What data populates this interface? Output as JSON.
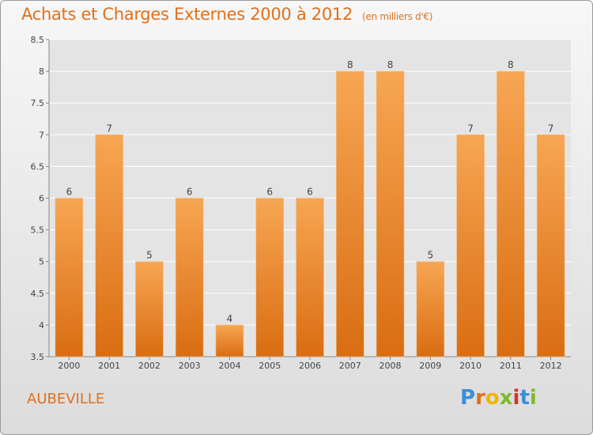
{
  "header": {
    "title": "Achats et Charges Externes 2000 à 2012",
    "unit": "(en milliers d'€)"
  },
  "footer": {
    "city": "AUBEVILLE",
    "logo": "Proxiti"
  },
  "colors": {
    "bar_top": "#f7a653",
    "bar_bottom": "#d96d12",
    "title": "#e0701c"
  },
  "chart_data": {
    "type": "bar",
    "title": "Achats et Charges Externes 2000 à 2012",
    "subtitle": "(en milliers d'€)",
    "categories": [
      "2000",
      "2001",
      "2002",
      "2003",
      "2004",
      "2005",
      "2006",
      "2007",
      "2008",
      "2009",
      "2010",
      "2011",
      "2012"
    ],
    "values": [
      6,
      7,
      5,
      6,
      4,
      6,
      6,
      8,
      8,
      5,
      7,
      8,
      7
    ],
    "ylim": [
      3.5,
      8.5
    ],
    "yticks": [
      "3.5",
      "4",
      "4.5",
      "5",
      "5.5",
      "6",
      "6.5",
      "7",
      "7.5",
      "8",
      "8.5"
    ],
    "grid": "horizontal",
    "legend": "none"
  }
}
